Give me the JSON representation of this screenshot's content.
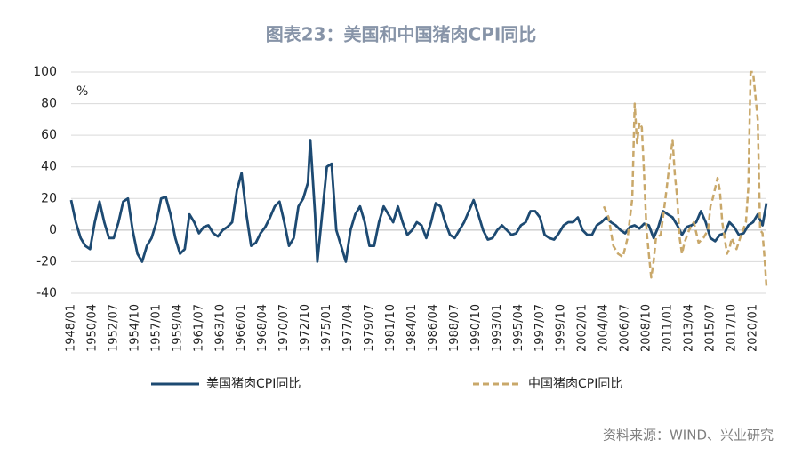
{
  "chart_data": {
    "type": "line",
    "title": "图表23：美国和中国猪肉CPI同比",
    "unit_label": "%",
    "source": "资料来源：WIND、兴业研究",
    "ylim": [
      -40,
      100
    ],
    "yticks": [
      -40,
      -20,
      0,
      20,
      40,
      60,
      80,
      100
    ],
    "grid": true,
    "xticks": [
      "1948/01",
      "1950/04",
      "1952/07",
      "1954/10",
      "1957/01",
      "1959/04",
      "1961/07",
      "1963/10",
      "1966/01",
      "1968/04",
      "1970/07",
      "1972/10",
      "1975/01",
      "1977/04",
      "1979/07",
      "1981/10",
      "1984/01",
      "1986/04",
      "1988/07",
      "1990/10",
      "1993/01",
      "1995/04",
      "1997/07",
      "1999/10",
      "2002/01",
      "2004/04",
      "2006/07",
      "2008/10",
      "2011/01",
      "2013/04",
      "2015/07",
      "2017/10",
      "2020/01"
    ],
    "series": [
      {
        "name": "美国猪肉CPI同比",
        "color": "#1d4a72",
        "dash": false,
        "x": [
          "1948/01",
          "1948/07",
          "1949/01",
          "1949/07",
          "1950/01",
          "1950/07",
          "1951/01",
          "1951/07",
          "1952/01",
          "1952/07",
          "1953/01",
          "1953/07",
          "1954/01",
          "1954/07",
          "1955/01",
          "1955/07",
          "1956/01",
          "1956/07",
          "1957/01",
          "1957/07",
          "1958/01",
          "1958/07",
          "1959/01",
          "1959/07",
          "1960/01",
          "1960/07",
          "1961/01",
          "1961/07",
          "1962/01",
          "1962/07",
          "1963/01",
          "1963/07",
          "1964/01",
          "1964/07",
          "1965/01",
          "1965/07",
          "1966/01",
          "1966/07",
          "1967/01",
          "1967/07",
          "1968/01",
          "1968/07",
          "1969/01",
          "1969/07",
          "1970/01",
          "1970/07",
          "1971/01",
          "1971/07",
          "1972/01",
          "1972/07",
          "1973/01",
          "1973/04",
          "1973/10",
          "1974/01",
          "1974/07",
          "1975/01",
          "1975/07",
          "1976/01",
          "1976/07",
          "1977/01",
          "1977/07",
          "1978/01",
          "1978/07",
          "1979/01",
          "1979/07",
          "1980/01",
          "1980/07",
          "1981/01",
          "1981/07",
          "1982/01",
          "1982/07",
          "1983/01",
          "1983/07",
          "1984/01",
          "1984/07",
          "1985/01",
          "1985/07",
          "1986/01",
          "1986/07",
          "1987/01",
          "1987/07",
          "1988/01",
          "1988/07",
          "1989/01",
          "1989/07",
          "1990/01",
          "1990/07",
          "1991/01",
          "1991/07",
          "1992/01",
          "1992/07",
          "1993/01",
          "1993/07",
          "1994/01",
          "1994/07",
          "1995/01",
          "1995/07",
          "1996/01",
          "1996/07",
          "1997/01",
          "1997/07",
          "1998/01",
          "1998/07",
          "1999/01",
          "1999/07",
          "2000/01",
          "2000/07",
          "2001/01",
          "2001/07",
          "2002/01",
          "2002/07",
          "2003/01",
          "2003/07",
          "2004/01",
          "2004/07",
          "2005/01",
          "2005/07",
          "2006/01",
          "2006/07",
          "2007/01",
          "2007/07",
          "2008/01",
          "2008/07",
          "2009/01",
          "2009/07",
          "2010/01",
          "2010/07",
          "2011/01",
          "2011/07",
          "2012/01",
          "2012/07",
          "2013/01",
          "2013/07",
          "2014/01",
          "2014/07",
          "2015/01",
          "2015/07",
          "2016/01",
          "2016/07",
          "2017/01",
          "2017/07",
          "2018/01",
          "2018/07",
          "2019/01",
          "2019/07",
          "2020/01",
          "2020/07",
          "2021/01",
          "2021/06"
        ],
        "values": [
          19,
          5,
          -5,
          -10,
          -12,
          5,
          18,
          5,
          -5,
          -5,
          5,
          18,
          20,
          0,
          -15,
          -20,
          -10,
          -5,
          5,
          20,
          21,
          10,
          -5,
          -15,
          -12,
          10,
          5,
          -2,
          2,
          3,
          -2,
          -4,
          0,
          2,
          5,
          25,
          36,
          10,
          -10,
          -8,
          -2,
          2,
          8,
          15,
          18,
          5,
          -10,
          -5,
          15,
          20,
          30,
          57,
          10,
          -20,
          10,
          40,
          42,
          0,
          -10,
          -20,
          0,
          10,
          15,
          5,
          -10,
          -10,
          5,
          15,
          10,
          5,
          15,
          5,
          -3,
          0,
          5,
          3,
          -5,
          5,
          17,
          15,
          5,
          -3,
          -5,
          0,
          5,
          12,
          19,
          10,
          0,
          -6,
          -5,
          0,
          3,
          0,
          -3,
          -2,
          3,
          5,
          12,
          12,
          8,
          -3,
          -5,
          -6,
          -2,
          3,
          5,
          5,
          8,
          0,
          -3,
          -3,
          3,
          5,
          8,
          5,
          3,
          0,
          -2,
          2,
          3,
          1,
          4,
          3,
          -5,
          2,
          12,
          10,
          8,
          3,
          -3,
          2,
          3,
          5,
          12,
          5,
          -5,
          -7,
          -3,
          -2,
          5,
          2,
          -3,
          -2,
          3,
          5,
          10,
          3,
          17
        ]
      },
      {
        "name": "中国猪肉CPI同比",
        "color": "#c9a86a",
        "dash": true,
        "x": [
          "2004/04",
          "2004/10",
          "2005/04",
          "2005/10",
          "2006/04",
          "2006/10",
          "2007/04",
          "2007/07",
          "2007/10",
          "2008/01",
          "2008/04",
          "2008/07",
          "2008/10",
          "2009/01",
          "2009/04",
          "2009/07",
          "2009/10",
          "2010/04",
          "2010/10",
          "2011/04",
          "2011/07",
          "2011/10",
          "2012/01",
          "2012/04",
          "2012/07",
          "2012/10",
          "2013/04",
          "2013/10",
          "2014/04",
          "2014/10",
          "2015/04",
          "2015/07",
          "2015/10",
          "2016/04",
          "2016/07",
          "2016/10",
          "2017/01",
          "2017/04",
          "2017/07",
          "2017/10",
          "2018/04",
          "2018/10",
          "2019/04",
          "2019/07",
          "2019/10",
          "2020/01",
          "2020/04",
          "2020/07",
          "2020/10",
          "2021/01",
          "2021/04",
          "2021/06"
        ],
        "values": [
          15,
          8,
          -10,
          -15,
          -17,
          -5,
          20,
          80,
          55,
          68,
          65,
          35,
          0,
          -15,
          -30,
          -20,
          -5,
          -3,
          20,
          45,
          57,
          35,
          20,
          -5,
          -15,
          -8,
          0,
          5,
          -8,
          -5,
          0,
          15,
          20,
          33,
          25,
          5,
          -5,
          -15,
          -12,
          -5,
          -12,
          -3,
          5,
          27,
          100,
          100,
          85,
          70,
          0,
          -2,
          -20,
          -36
        ]
      }
    ]
  }
}
